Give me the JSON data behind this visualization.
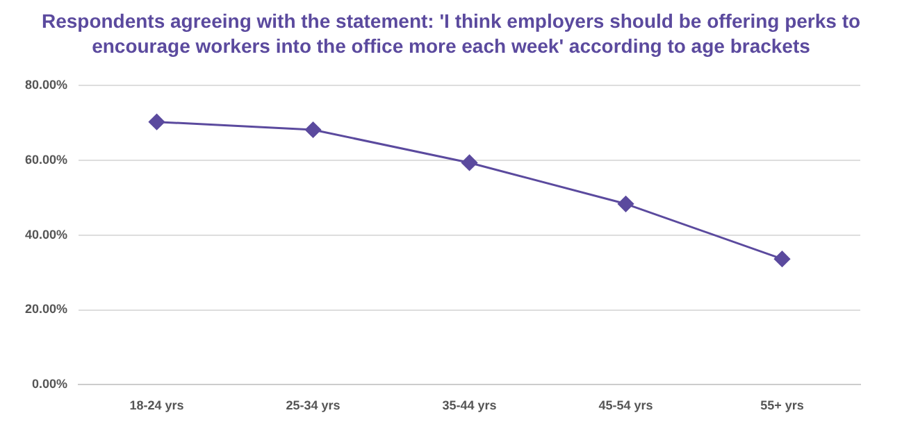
{
  "chart_data": {
    "type": "line",
    "title": "Respondents agreeing with the statement: 'I think employers should be offering perks to encourage workers into the office more each week' according to age brackets",
    "categories": [
      "18-24 yrs",
      "25-34 yrs",
      "35-44 yrs",
      "45-54 yrs",
      "55+ yrs"
    ],
    "series": [
      {
        "color": "#5b4a9e",
        "values": [
          70.2,
          68.1,
          59.3,
          48.3,
          33.6
        ]
      }
    ],
    "ylim": [
      0,
      80
    ],
    "yticks": [
      {
        "value": 0,
        "label": "0.00%"
      },
      {
        "value": 20,
        "label": "20.00%"
      },
      {
        "value": 40,
        "label": "40.00%"
      },
      {
        "value": 60,
        "label": "60.00%"
      },
      {
        "value": 80,
        "label": "80.00%"
      }
    ],
    "grid": "y",
    "marker": "diamond",
    "line_style": "solid",
    "legend": false
  }
}
